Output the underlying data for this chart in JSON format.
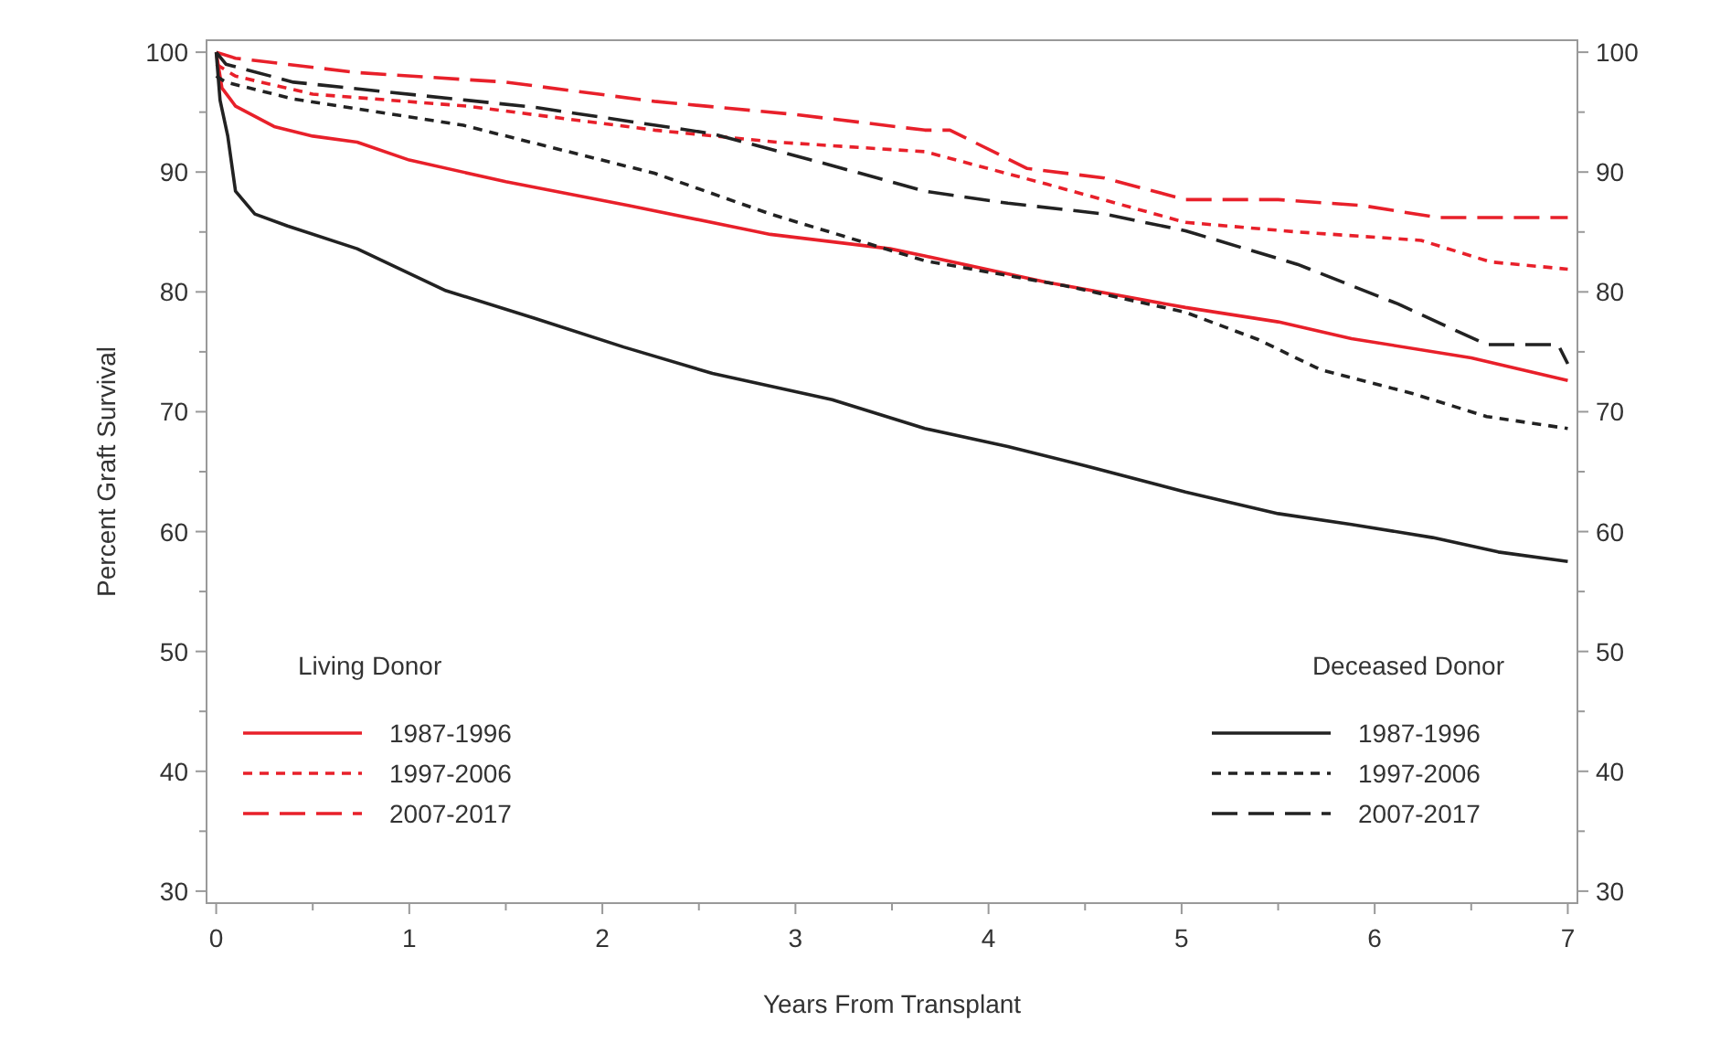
{
  "chart_data": {
    "type": "line",
    "xlabel": "Years From Transplant",
    "ylabel": "Percent Graft Survival",
    "xlim": [
      -0.05,
      7.05
    ],
    "ylim": [
      29,
      101
    ],
    "y2lim": [
      29,
      101
    ],
    "xticks": [
      0,
      {
        "value": 0.5,
        "label": null
      },
      1,
      {
        "value": 1.5,
        "label": null
      },
      2,
      {
        "value": 2.5,
        "label": null
      },
      3,
      {
        "value": 3.5,
        "label": null
      },
      4,
      {
        "value": 4.5,
        "label": null
      },
      5,
      {
        "value": 5.5,
        "label": null
      },
      6,
      {
        "value": 6.5,
        "label": null
      },
      7
    ],
    "yticks": [
      30,
      {
        "value": 35,
        "label": null
      },
      40,
      {
        "value": 45,
        "label": null
      },
      50,
      {
        "value": 55,
        "label": null
      },
      60,
      {
        "value": 65,
        "label": null
      },
      70,
      {
        "value": 75,
        "label": null
      },
      80,
      {
        "value": 85,
        "label": null
      },
      90,
      {
        "value": 95,
        "label": null
      },
      100
    ],
    "y2ticks": [
      30,
      {
        "value": 35,
        "label": null
      },
      40,
      {
        "value": 45,
        "label": null
      },
      50,
      {
        "value": 55,
        "label": null
      },
      60,
      {
        "value": 65,
        "label": null
      },
      70,
      {
        "value": 75,
        "label": null
      },
      80,
      {
        "value": 85,
        "label": null
      },
      90,
      {
        "value": 95,
        "label": null
      },
      100
    ],
    "legend": "bottom",
    "grid": false,
    "annotations": [
      "Living Donor",
      "Deceased Donor"
    ],
    "series": [
      {
        "name": "1987-1996",
        "color": "#e8202a",
        "line_style": "solid",
        "x": [
          0,
          0.03,
          0.1,
          0.3,
          0.5,
          0.73,
          1,
          1.5,
          2.14,
          2.87,
          3.49,
          3.67,
          4.3,
          5.02,
          5.5,
          5.88,
          6.5,
          7
        ],
        "values": [
          100,
          97,
          95.5,
          93.8,
          93,
          92.5,
          91,
          89.2,
          87.2,
          84.8,
          83.6,
          83,
          80.8,
          78.7,
          77.5,
          76.1,
          74.5,
          72.6
        ]
      },
      {
        "name": "1997-2006",
        "color": "#e8202a",
        "line_style": "dashed",
        "x": [
          0,
          0.1,
          0.5,
          1.3,
          2.27,
          2.9,
          3.67,
          4.3,
          5.02,
          5.6,
          6.24,
          6.6,
          7
        ],
        "values": [
          99,
          98,
          96.5,
          95.5,
          93.5,
          92.5,
          91.7,
          89,
          85.8,
          85,
          84.3,
          82.5,
          81.9
        ]
      },
      {
        "name": "2007-2017",
        "color": "#e8202a",
        "line_style": "longdash",
        "x": [
          0,
          0.1,
          0.73,
          1.5,
          2.27,
          3,
          3.67,
          3.8,
          4.2,
          4.6,
          5.02,
          5.5,
          5.94,
          6.33,
          7
        ],
        "values": [
          100,
          99.5,
          98.3,
          97.5,
          95.9,
          94.8,
          93.5,
          93.5,
          90.3,
          89.5,
          87.7,
          87.7,
          87.2,
          86.2,
          86.2
        ]
      },
      {
        "name": "1987-1996",
        "color": "#222222",
        "line_style": "solid",
        "x": [
          0,
          0.02,
          0.06,
          0.1,
          0.2,
          0.37,
          0.73,
          1.19,
          1.65,
          2.11,
          2.57,
          3.19,
          3.67,
          4.1,
          4.5,
          5.02,
          5.5,
          5.88,
          6.3,
          6.64,
          7
        ],
        "values": [
          100,
          96,
          93,
          88.4,
          86.5,
          85.5,
          83.6,
          80.1,
          77.8,
          75.4,
          73.2,
          71,
          68.6,
          67.1,
          65.5,
          63.3,
          61.5,
          60.6,
          59.5,
          58.3,
          57.5
        ]
      },
      {
        "name": "1997-2006",
        "color": "#222222",
        "line_style": "dashed",
        "x": [
          0,
          0.05,
          0.4,
          1.28,
          2.27,
          2.87,
          3.67,
          4.4,
          5.02,
          5.4,
          5.72,
          6.2,
          6.58,
          7
        ],
        "values": [
          98,
          97.5,
          96.1,
          93.9,
          89.9,
          86.5,
          82.6,
          80.5,
          78.3,
          76,
          73.5,
          71.5,
          69.6,
          68.6
        ]
      },
      {
        "name": "2007-2017",
        "color": "#222222",
        "line_style": "longdash",
        "x": [
          0,
          0.05,
          0.4,
          1.65,
          2.57,
          3.2,
          3.67,
          4.1,
          4.6,
          5.02,
          5.6,
          6.12,
          6.58,
          6.95,
          7
        ],
        "values": [
          100,
          99,
          97.5,
          95.4,
          93.2,
          90.5,
          88.4,
          87.4,
          86.5,
          85.1,
          82.3,
          79,
          75.6,
          75.6,
          74
        ]
      }
    ]
  }
}
